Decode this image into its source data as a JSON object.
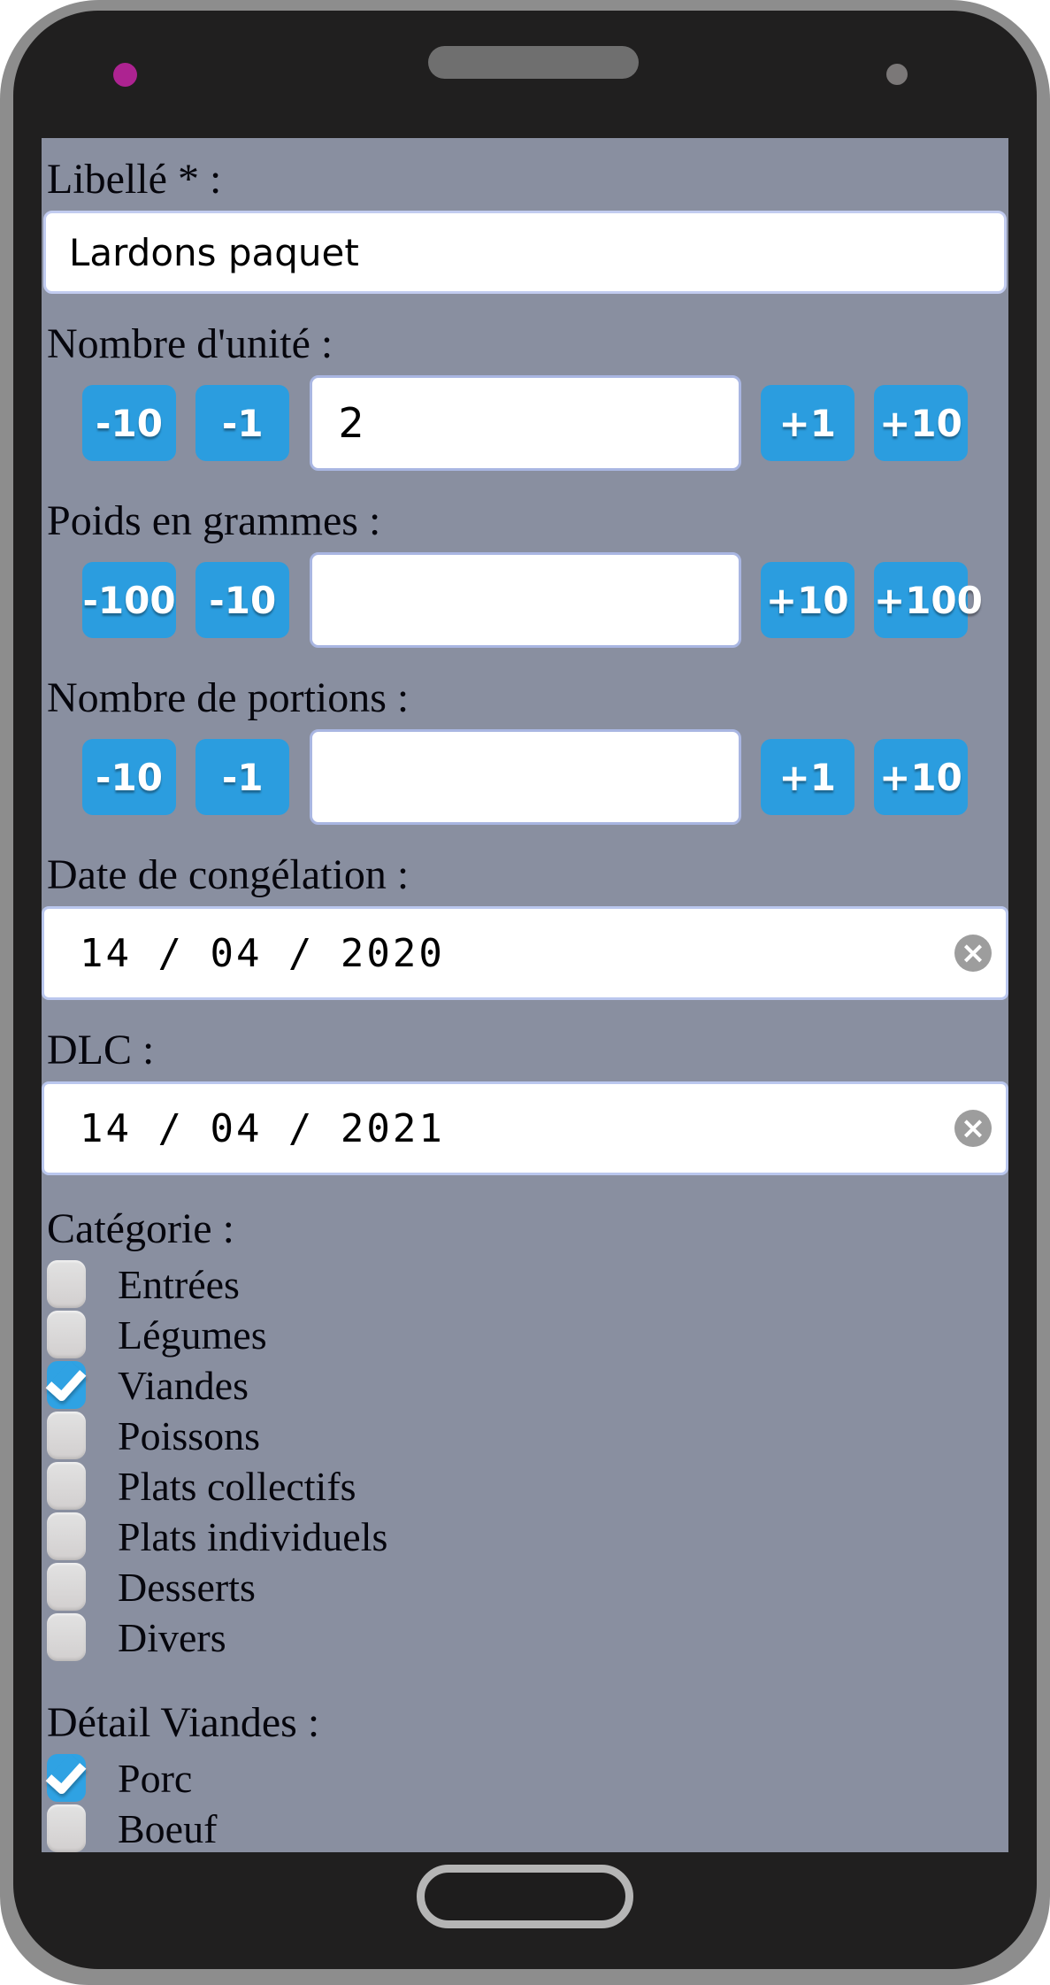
{
  "colors": {
    "accent_blue": "#2b9ddf",
    "checked_blue": "#2fa2e3",
    "screen_background": "#898fa0",
    "camera_dot_magenta": "#ad2391",
    "phone_frame_gray": "#8d8d8d",
    "phone_body_black": "#201f1f"
  },
  "form": {
    "libelle": {
      "label": "Libellé * :",
      "value": "Lardons paquet"
    },
    "steppers": [
      {
        "label": "Nombre d'unité :",
        "value": "2",
        "buttons": [
          "-10",
          "-1",
          "+1",
          "+10"
        ]
      },
      {
        "label": "Poids en grammes :",
        "value": "",
        "buttons": [
          "-100",
          "-10",
          "+10",
          "+100"
        ]
      },
      {
        "label": "Nombre de portions :",
        "value": "",
        "buttons": [
          "-10",
          "-1",
          "+1",
          "+10"
        ]
      }
    ],
    "dates": [
      {
        "label": "Date de congélation :",
        "value": "14 / 04 / 2020",
        "clear_glyph": "×"
      },
      {
        "label": "DLC :",
        "value": "14 / 04 / 2021",
        "clear_glyph": "×"
      }
    ],
    "categories": {
      "label": "Catégorie :",
      "items": [
        {
          "label": "Entrées",
          "checked": false
        },
        {
          "label": "Légumes",
          "checked": false
        },
        {
          "label": "Viandes",
          "checked": true
        },
        {
          "label": "Poissons",
          "checked": false
        },
        {
          "label": "Plats collectifs",
          "checked": false
        },
        {
          "label": "Plats individuels",
          "checked": false
        },
        {
          "label": "Desserts",
          "checked": false
        },
        {
          "label": "Divers",
          "checked": false
        }
      ]
    },
    "details": {
      "label": "Détail Viandes :",
      "items": [
        {
          "label": "Porc",
          "checked": true
        },
        {
          "label": "Boeuf",
          "checked": false
        }
      ]
    }
  }
}
